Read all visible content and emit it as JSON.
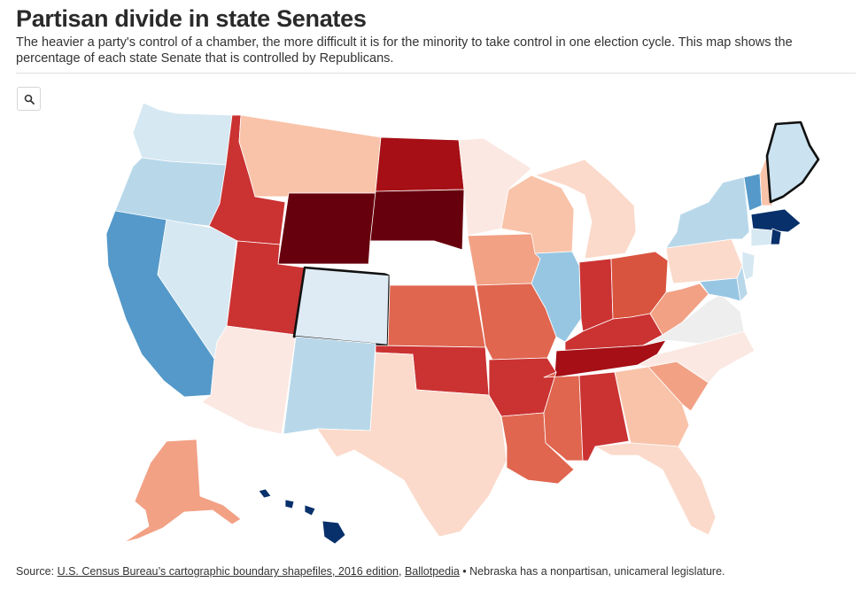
{
  "header": {
    "title": "Partisan divide in state Senates",
    "subtitle": "The heavier a party's control of a chamber, the more difficult it is for the minority to take control in one election cycle. This map shows the percentage of each state Senate that is controlled by Republicans."
  },
  "controls": {
    "zoom_icon": "magnifier-icon"
  },
  "footer": {
    "source_prefix": "Source: ",
    "link1": "U.S. Census Bureau’s cartographic boundary shapefiles, 2016 edition",
    "sep": ", ",
    "link2": "Ballotpedia",
    "note": " • Nebraska has a nonpartisan, unicameral legislature."
  },
  "colors": {
    "dark_red": "#67000d",
    "red": "#a50f15",
    "medium_red": "#cb3232",
    "light_red": "#e0664f",
    "salmon": "#f2a185",
    "peach": "#f9c3a9",
    "light_peach": "#fbdacb",
    "pale": "#fbe8e2",
    "neutral": "#eeeeee",
    "nonpartisan": "#ffffff",
    "pale_blue": "#d6e8f2",
    "light_blue": "#b8d8ea",
    "blue": "#97c6e3",
    "medium_blue": "#5499c9",
    "dark_blue": "#08306b"
  },
  "highlighted_states": [
    "colorado",
    "maine"
  ]
}
